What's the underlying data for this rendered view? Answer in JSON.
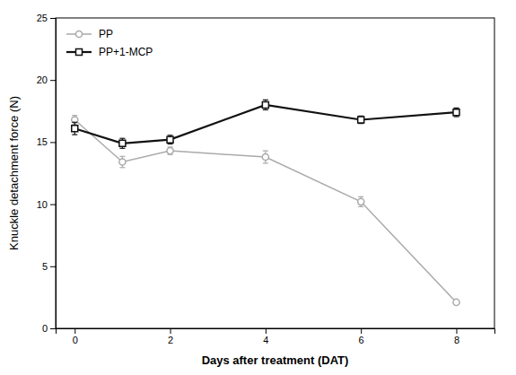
{
  "chart_data": {
    "type": "line",
    "x": [
      0,
      1,
      2,
      4,
      6,
      8
    ],
    "series": [
      {
        "name": "PP",
        "color": "#aaaaaa",
        "marker": "circle",
        "values": [
          16.8,
          13.4,
          14.3,
          13.8,
          10.2,
          2.1
        ],
        "errors": [
          0.35,
          0.45,
          0.3,
          0.5,
          0.4,
          0.15
        ]
      },
      {
        "name": "PP+1-MCP",
        "color": "#111111",
        "marker": "square",
        "values": [
          16.1,
          14.9,
          15.2,
          18.0,
          16.8,
          17.4
        ],
        "errors": [
          0.5,
          0.4,
          0.35,
          0.4,
          0.3,
          0.35
        ]
      }
    ],
    "xlabel": "Days after treatment (DAT)",
    "ylabel": "Knuckle detachment force (N)",
    "xlim": [
      -0.4,
      8.8
    ],
    "ylim": [
      0,
      25
    ],
    "xticks": [
      0,
      2,
      4,
      6,
      8
    ],
    "yticks": [
      0,
      5,
      10,
      15,
      20,
      25
    ],
    "grid": false,
    "legend": "upper left"
  }
}
